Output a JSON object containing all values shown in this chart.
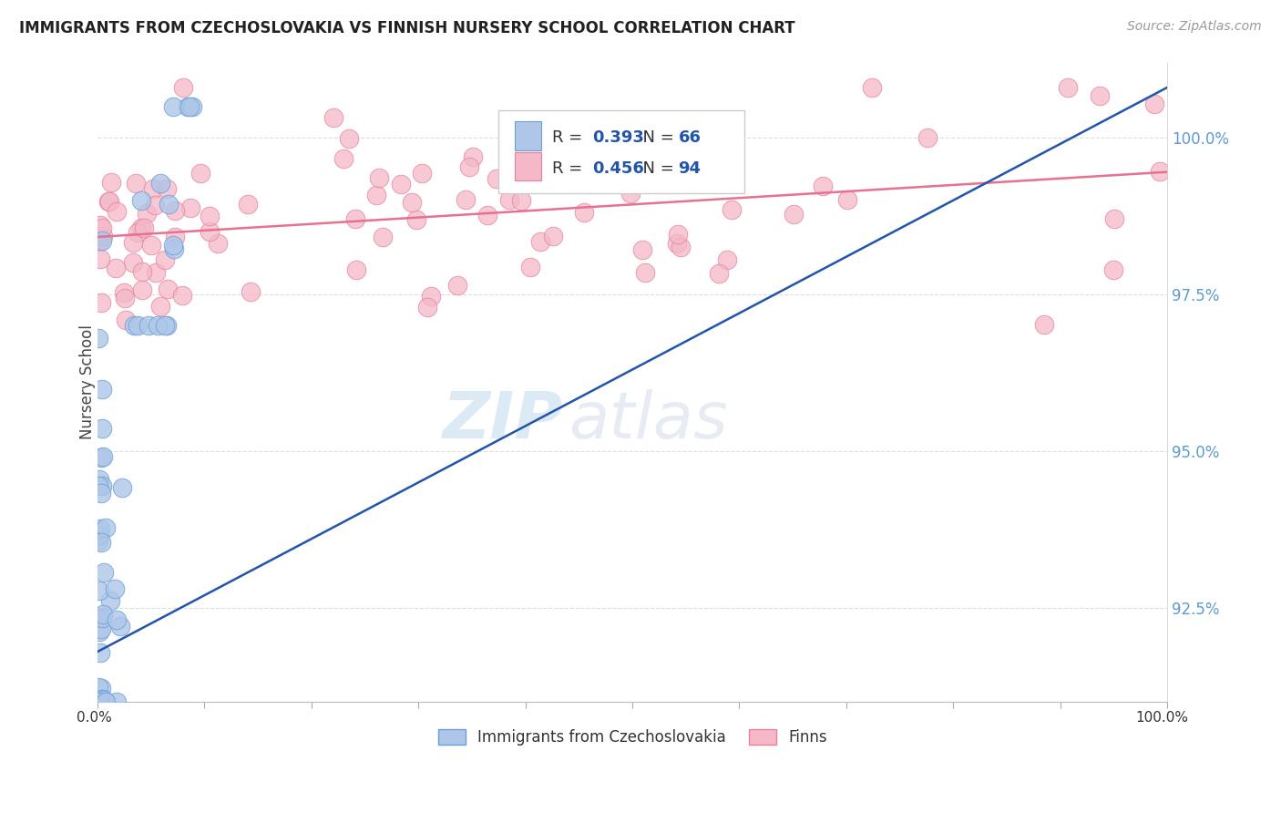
{
  "title": "IMMIGRANTS FROM CZECHOSLOVAKIA VS FINNISH NURSERY SCHOOL CORRELATION CHART",
  "source": "Source: ZipAtlas.com",
  "ylabel": "Nursery School",
  "x_min": 0.0,
  "x_max": 100.0,
  "y_min": 91.0,
  "y_max": 101.2,
  "yticks": [
    92.5,
    95.0,
    97.5,
    100.0
  ],
  "ytick_labels": [
    "92.5%",
    "95.0%",
    "97.5%",
    "100.0%"
  ],
  "ytick_color": "#5b9bd5",
  "blue_R": 0.393,
  "blue_N": 66,
  "pink_R": 0.456,
  "pink_N": 94,
  "blue_color": "#aec6e8",
  "pink_color": "#f4b8c8",
  "blue_edge": "#6a9fd8",
  "pink_edge": "#e8809a",
  "blue_line_color": "#2255aa",
  "pink_line_color": "#e87090",
  "blue_label": "Immigrants from Czechoslovakia",
  "pink_label": "Finns",
  "watermark_zip": "ZIP",
  "watermark_atlas": "atlas",
  "grid_color": "#dddddd",
  "legend_box_color": "#eeeeee",
  "legend_R_label": "R = ",
  "legend_N_label": "  N = ",
  "legend_value_color": "#2255aa",
  "xtick_label_color": "#333333"
}
